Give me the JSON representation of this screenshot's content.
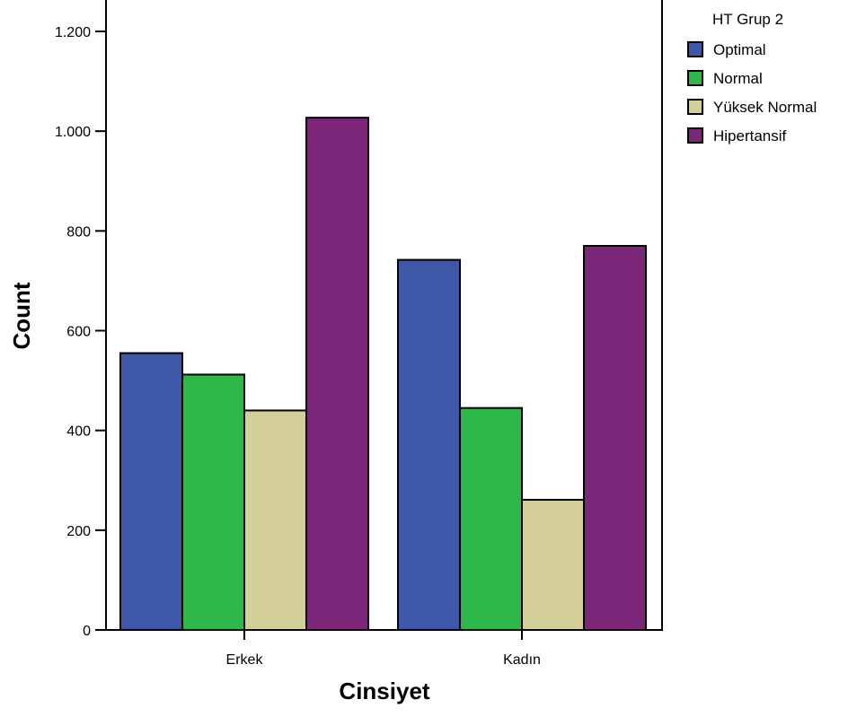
{
  "chart_data": {
    "type": "bar",
    "categories": [
      "Erkek",
      "Kadın"
    ],
    "series": [
      {
        "name": "Optimal",
        "values": [
          555,
          742
        ],
        "color": "#3f57a8"
      },
      {
        "name": "Normal",
        "values": [
          512,
          445
        ],
        "color": "#2db84a"
      },
      {
        "name": "Yüksek Normal",
        "values": [
          440,
          261
        ],
        "color": "#d4cf98"
      },
      {
        "name": "Hipertansif",
        "values": [
          1027,
          770
        ],
        "color": "#7c2679"
      }
    ],
    "xlabel": "Cinsiyet",
    "ylabel": "Count",
    "ylim": [
      0,
      1200
    ],
    "yticks": [
      0,
      200,
      400,
      600,
      800,
      1000,
      1200
    ],
    "ytick_labels": [
      "0",
      "200",
      "400",
      "600",
      "800",
      "1.000",
      "1.200"
    ],
    "legend": {
      "title": "HT Grup 2",
      "position": "top-right-outside"
    },
    "grid": false
  }
}
